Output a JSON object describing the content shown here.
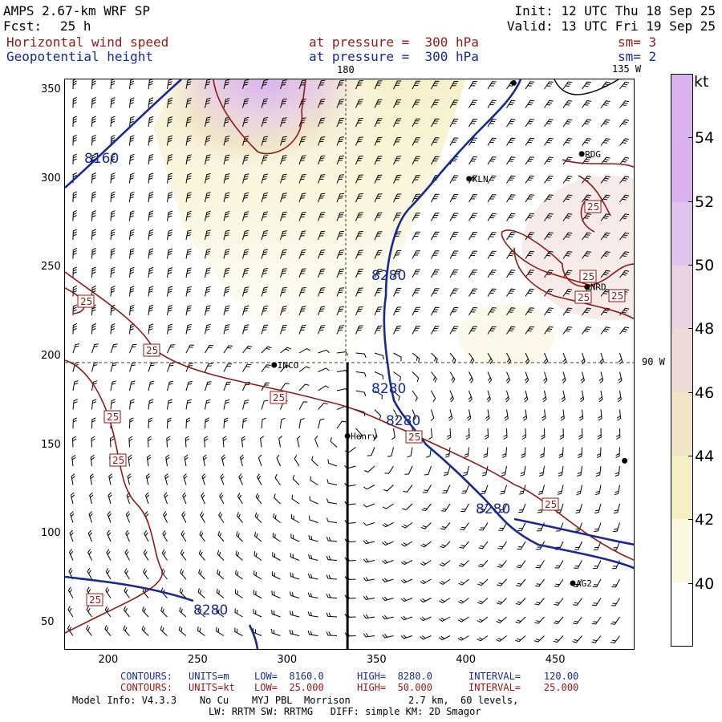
{
  "header": {
    "model": "AMPS 2.67-km WRF SP",
    "forecast_label": "Fcst:",
    "forecast_value": "25 h",
    "init": "Init: 12 UTC Thu 18 Sep 25",
    "valid": "Valid: 13 UTC Fri 19 Sep 25",
    "field1": "Horizontal wind speed",
    "field1_level": "at pressure =  300 hPa",
    "field1_sm": "sm= 3",
    "field2": "Geopotential height",
    "field2_level": "at pressure =  300 hPa",
    "field2_sm": "sm= 2"
  },
  "map": {
    "meridian_180_label": "180",
    "meridian_135w_label": "135 W",
    "meridian_90w_label": "90 W",
    "stations": [
      {
        "name": "KLN",
        "x": 402,
        "y": 300
      },
      {
        "name": "RDG",
        "x": 465,
        "y": 314
      },
      {
        "name": "NRD",
        "x": 468,
        "y": 239
      },
      {
        "name": "INCO",
        "x": 293,
        "y": 195
      },
      {
        "name": "Henry",
        "x": 334,
        "y": 155
      },
      {
        "name": "AG2",
        "x": 460,
        "y": 72
      },
      {
        "name": "",
        "x": 427,
        "y": 354
      },
      {
        "name": "",
        "x": 489,
        "y": 141
      }
    ],
    "height_contour_labels": [
      "8160",
      "8280",
      "8280",
      "8280",
      "8280",
      "8280"
    ],
    "wind_contour_labels": [
      "25",
      "25",
      "25",
      "25",
      "25",
      "25",
      "25",
      "25",
      "25",
      "25",
      "25",
      "25"
    ],
    "x_ticks": [
      "200",
      "250",
      "300",
      "350",
      "400",
      "450"
    ],
    "y_ticks": [
      "350",
      "300",
      "250",
      "200",
      "150",
      "100",
      "50"
    ]
  },
  "chart_data": {
    "type": "heatmap",
    "title": "Horizontal wind speed / Geopotential height at 300 hPa",
    "xlim": [
      176,
      495
    ],
    "ylim": [
      34,
      356
    ],
    "x_ticks": [
      200,
      250,
      300,
      350,
      400,
      450
    ],
    "y_ticks": [
      50,
      100,
      150,
      200,
      250,
      300,
      350
    ],
    "cross_section_x": 334,
    "colorbar": {
      "unit": "kt",
      "ticks": [
        40,
        42,
        44,
        46,
        48,
        50,
        52,
        54
      ],
      "range": [
        38,
        56
      ],
      "colors": [
        "#ffffff",
        "#fbf9e0",
        "#f5efc4",
        "#f1e6c8",
        "#eedad6",
        "#e9d2e1",
        "#e1c4ec",
        "#d7b2ed",
        "#d8b3ee"
      ]
    },
    "geopotential_height": {
      "units": "m",
      "low": 8160.0,
      "high": 8280.0,
      "interval": 120.0
    },
    "wind_speed": {
      "units": "kt",
      "low": 25.0,
      "high": 50.0,
      "interval": 25.0
    }
  },
  "colorbar_labels": {
    "unit": "kt",
    "ticks": [
      "54",
      "52",
      "50",
      "48",
      "46",
      "44",
      "42",
      "40"
    ]
  },
  "footer": {
    "row1_contours": "CONTOURS:",
    "row1_units": "UNITS=m",
    "row1_low": "LOW=  8160.0",
    "row1_high": "HIGH=  8280.0",
    "row1_interval": "INTERVAL=    120.00",
    "row2_contours": "CONTOURS:",
    "row2_units": "UNITS=kt",
    "row2_low": "LOW=  25.000",
    "row2_high": "HIGH=  50.000",
    "row2_interval": "INTERVAL=    25.000",
    "model_info": "Model Info: V4.3.3    No Cu    MYJ PBL  Morrison          2.7 km,  60 levels,",
    "model_info2": "LW: RRTM SW: RRTMG   DIFF: simple KM: 2D Smagor"
  },
  "colors": {
    "height_contour": "#1a2a8b",
    "wind_contour": "#8b1a1a",
    "text_red": "#8b1a1a",
    "text_blue": "#1a2a8b"
  }
}
